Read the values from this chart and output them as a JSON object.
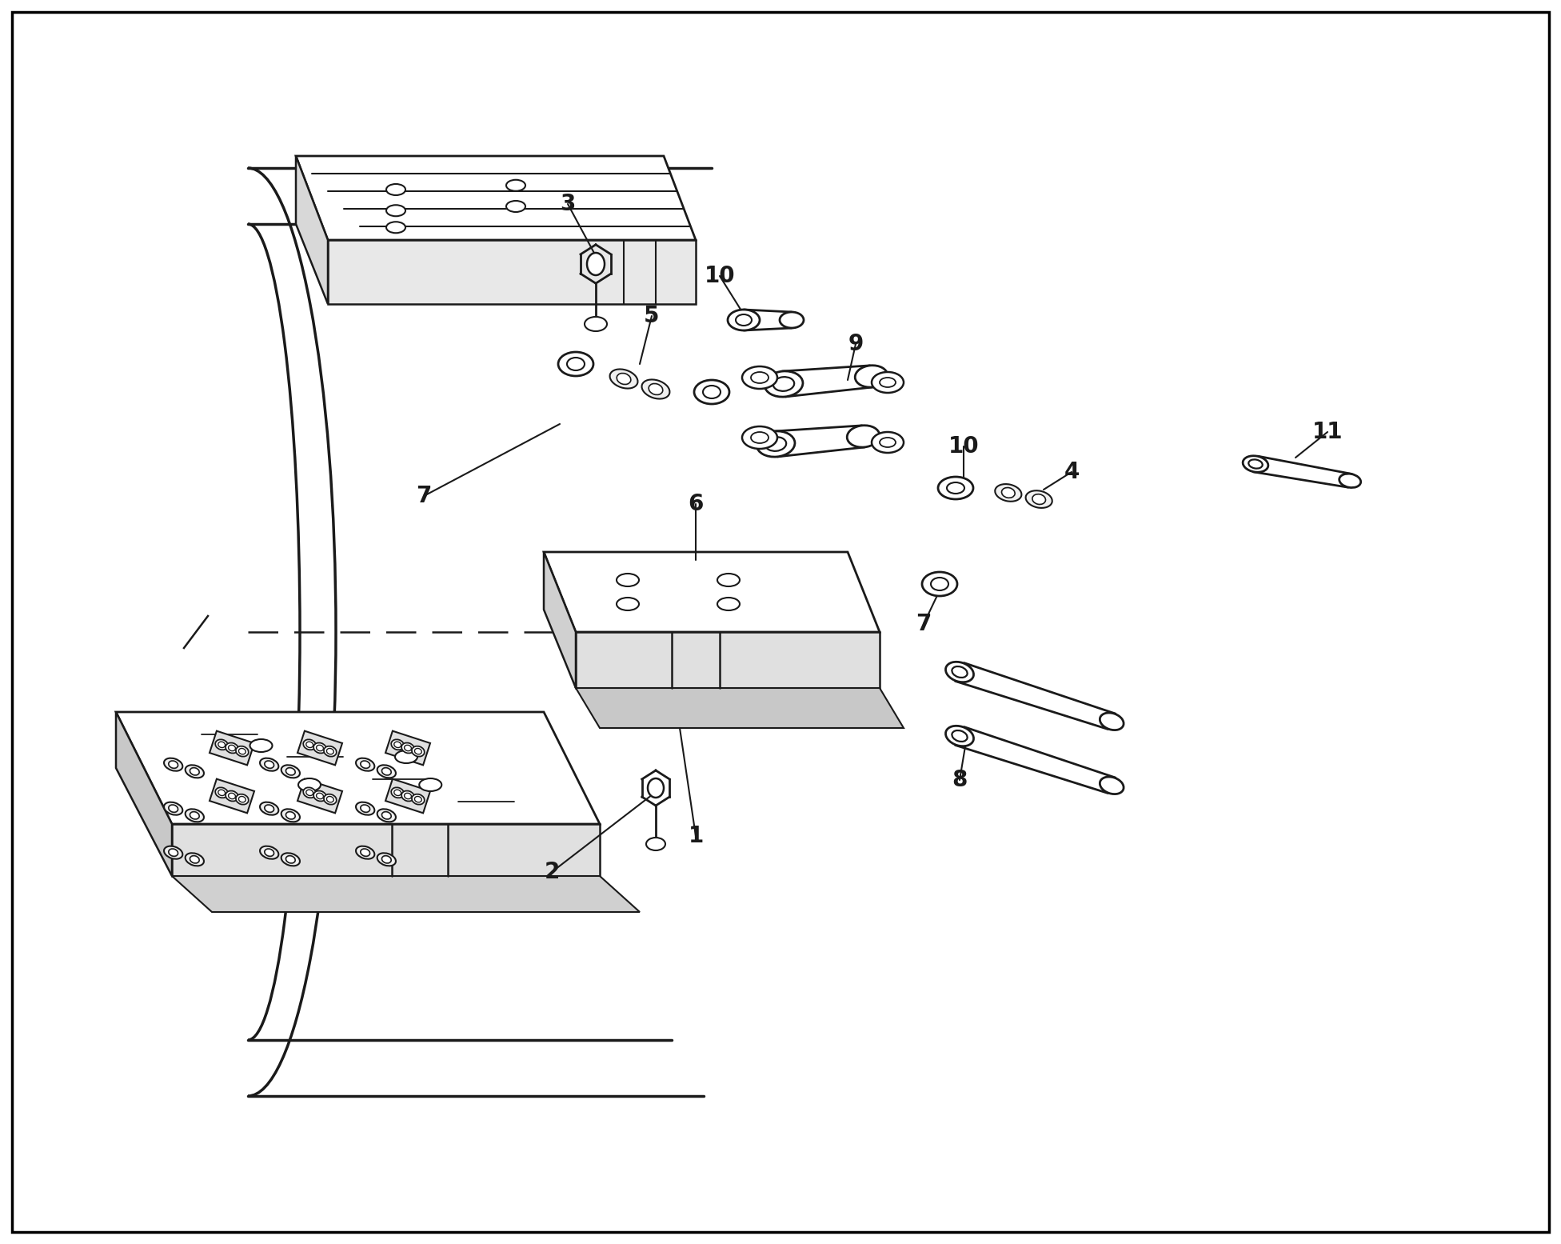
{
  "background_color": "#ffffff",
  "line_color": "#1a1a1a",
  "figure_width": 19.52,
  "figure_height": 15.55,
  "label_fontsize": 20,
  "border_color": "#000000"
}
